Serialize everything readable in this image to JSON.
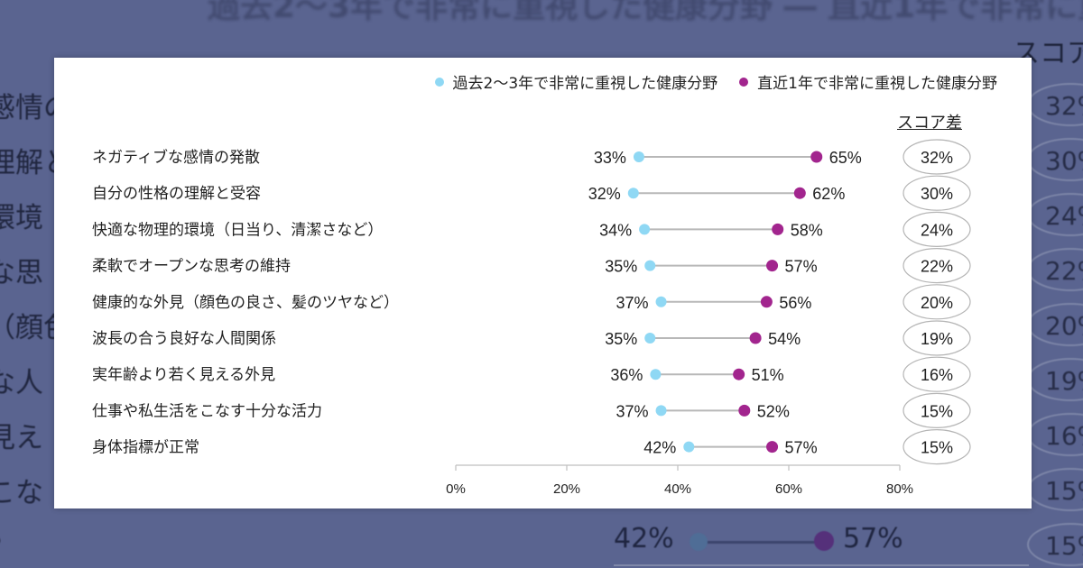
{
  "chart_data": {
    "type": "dumbbell",
    "legend": [
      {
        "name": "過去2〜3年で非常に重視した健康分野",
        "color": "#8fd8f4"
      },
      {
        "name": "直近1年で非常に重視した健康分野",
        "color": "#a2258e"
      }
    ],
    "score_header": "スコア差",
    "categories": [
      "ネガティブな感情の発散",
      "自分の性格の理解と受容",
      "快適な物理的環境（日当り、清潔さなど）",
      "柔軟でオープンな思考の維持",
      "健康的な外見（顔色の良さ、髪のツヤなど）",
      "波長の合う良好な人間関係",
      "実年齢より若く見える外見",
      "仕事や私生活をこなす十分な活力",
      "身体指標が正常"
    ],
    "series": [
      {
        "name": "過去2〜3年で非常に重視した健康分野",
        "values": [
          33,
          32,
          34,
          35,
          37,
          35,
          36,
          37,
          42
        ]
      },
      {
        "name": "直近1年で非常に重視した健康分野",
        "values": [
          65,
          62,
          58,
          57,
          56,
          54,
          51,
          52,
          57
        ]
      }
    ],
    "value_labels": {
      "past": [
        "33%",
        "32%",
        "34%",
        "35%",
        "37%",
        "35%",
        "36%",
        "37%",
        "42%"
      ],
      "recent": [
        "65%",
        "62%",
        "58%",
        "57%",
        "56%",
        "54%",
        "51%",
        "52%",
        "57%"
      ]
    },
    "score_diff": [
      "32%",
      "30%",
      "24%",
      "22%",
      "20%",
      "19%",
      "16%",
      "15%",
      "15%"
    ],
    "xlim": [
      0,
      80
    ],
    "xticks": [
      "0%",
      "20%",
      "40%",
      "60%",
      "80%"
    ],
    "connector_color": "#b8b8b8",
    "grid": false
  },
  "background": {
    "score_header": "スコア",
    "labels": [
      "感情の",
      "理解と",
      "環境",
      "な思",
      "（顔色",
      "な人",
      "見え",
      "こな",
      "？"
    ],
    "badges": [
      "32%",
      "30%",
      "24%",
      "22%",
      "20%",
      "19%",
      "16%",
      "15%",
      "15%"
    ],
    "last_row": {
      "past": "42%",
      "recent": "57%"
    }
  }
}
